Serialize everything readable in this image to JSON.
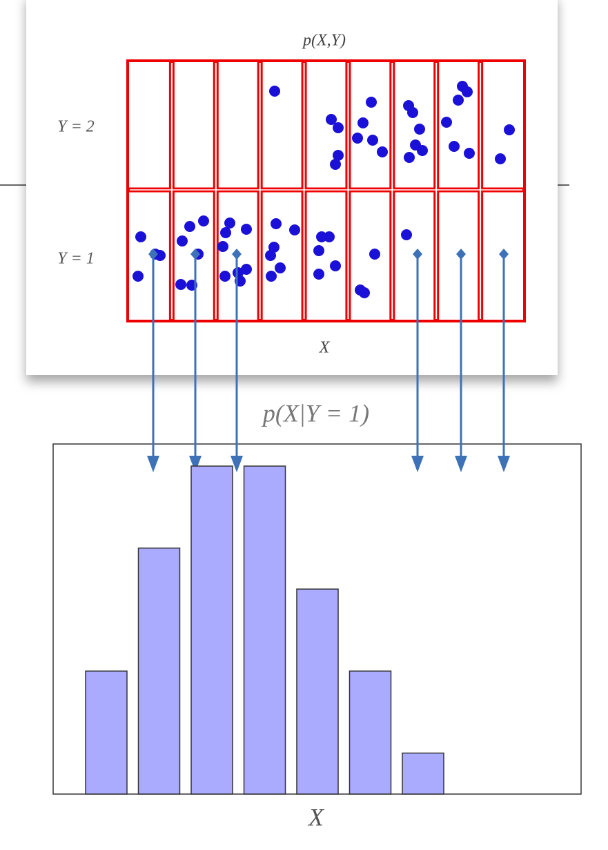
{
  "joint": {
    "title": "p(X,Y)",
    "row_labels": [
      "Y = 2",
      "Y = 1"
    ],
    "x_label": "X"
  },
  "chart_data": {
    "type": "bar",
    "title": "p(X|Y = 1)",
    "x_label": "X",
    "values": [
      3,
      6,
      8,
      8,
      5,
      3,
      1
    ],
    "color": "#aaaaff"
  }
}
